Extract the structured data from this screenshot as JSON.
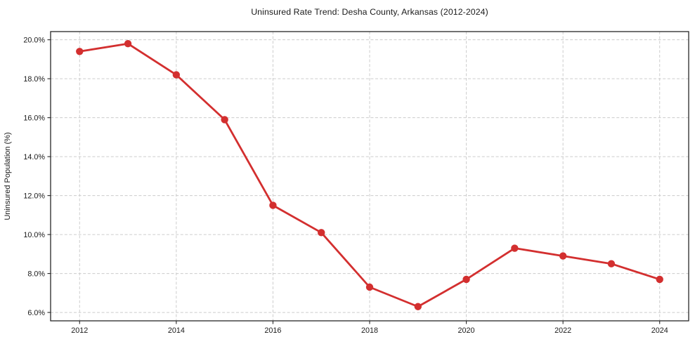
{
  "chart_data": {
    "type": "line",
    "title": "Uninsured Rate Trend: Desha County, Arkansas (2012-2024)",
    "xlabel": "",
    "ylabel": "Uninsured Population (%)",
    "x": [
      2012,
      2013,
      2014,
      2015,
      2016,
      2017,
      2018,
      2019,
      2020,
      2021,
      2022,
      2023,
      2024
    ],
    "series": [
      {
        "name": "Uninsured Population (%)",
        "values": [
          19.4,
          19.8,
          18.2,
          15.9,
          11.5,
          10.1,
          7.3,
          6.3,
          7.7,
          9.3,
          8.9,
          8.5,
          7.7
        ]
      }
    ],
    "x_ticks": [
      2012,
      2014,
      2016,
      2018,
      2020,
      2022,
      2024
    ],
    "x_tick_labels": [
      "2012",
      "2014",
      "2016",
      "2018",
      "2020",
      "2022",
      "2024"
    ],
    "y_ticks": [
      6,
      8,
      10,
      12,
      14,
      16,
      18,
      20
    ],
    "y_tick_labels": [
      "6.0%",
      "8.0%",
      "10.0%",
      "12.0%",
      "14.0%",
      "16.0%",
      "18.0%",
      "20.0%"
    ],
    "xlim": [
      2011.4,
      2024.6
    ],
    "ylim": [
      5.57,
      20.42
    ],
    "grid": true,
    "grid_style": "dashed",
    "legend_position": "none",
    "line_color": "#d32f2f",
    "marker_color": "#d32f2f",
    "marker": "o",
    "grid_color": "#cccccc",
    "spine_color": "#262626",
    "text_color": "#1a1a1a",
    "background_color": "#ffffff"
  }
}
